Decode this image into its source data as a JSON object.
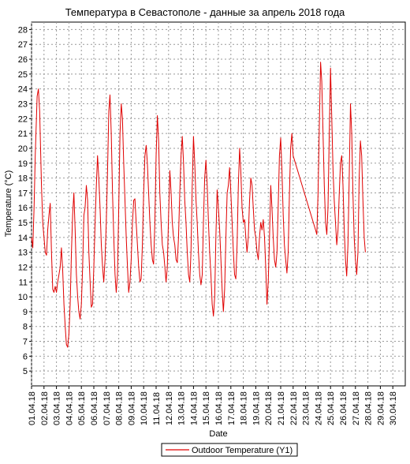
{
  "chart_data": {
    "type": "line",
    "title": "Температура в Севастополе - данные за апрель 2018 года",
    "xlabel": "Date",
    "ylabel": "Temperature (°C)",
    "ylim": [
      4,
      28.5
    ],
    "yticks": [
      5,
      6,
      7,
      8,
      9,
      10,
      11,
      12,
      13,
      14,
      15,
      16,
      17,
      18,
      19,
      20,
      21,
      22,
      23,
      24,
      25,
      26,
      27,
      28
    ],
    "xlim": [
      1.0,
      31.0
    ],
    "xticks": [
      {
        "x": 1,
        "label": "01.04.18"
      },
      {
        "x": 2,
        "label": "02.04.18"
      },
      {
        "x": 3,
        "label": "03.04.18"
      },
      {
        "x": 4,
        "label": "04.04.18"
      },
      {
        "x": 5,
        "label": "05.04.18"
      },
      {
        "x": 6,
        "label": "06.04.18"
      },
      {
        "x": 7,
        "label": "07.04.18"
      },
      {
        "x": 8,
        "label": "08.04.18"
      },
      {
        "x": 9,
        "label": "09.04.18"
      },
      {
        "x": 10,
        "label": "10.04.18"
      },
      {
        "x": 11,
        "label": "11.04.18"
      },
      {
        "x": 12,
        "label": "12.04.18"
      },
      {
        "x": 13,
        "label": "13.04.18"
      },
      {
        "x": 14,
        "label": "14.04.18"
      },
      {
        "x": 15,
        "label": "15.04.18"
      },
      {
        "x": 16,
        "label": "16.04.18"
      },
      {
        "x": 17,
        "label": "17.04.18"
      },
      {
        "x": 18,
        "label": "18.04.18"
      },
      {
        "x": 19,
        "label": "19.04.18"
      },
      {
        "x": 20,
        "label": "20.04.18"
      },
      {
        "x": 21,
        "label": "21.04.18"
      },
      {
        "x": 22,
        "label": "22.04.18"
      },
      {
        "x": 23,
        "label": "23.04.18"
      },
      {
        "x": 24,
        "label": "24.04.18"
      },
      {
        "x": 25,
        "label": "25.04.18"
      },
      {
        "x": 26,
        "label": "26.04.18"
      },
      {
        "x": 27,
        "label": "27.04.18"
      },
      {
        "x": 28,
        "label": "28.04.18"
      },
      {
        "x": 29,
        "label": "29.04.18"
      },
      {
        "x": 30,
        "label": "30.04.18"
      }
    ],
    "grid": true,
    "legend_position": "bottom-center",
    "series": [
      {
        "name": "Outdoor Temperature (Y1)",
        "color": "#e00000",
        "points": [
          [
            1.0,
            14.0
          ],
          [
            1.1,
            13.3
          ],
          [
            1.2,
            16.0
          ],
          [
            1.3,
            19.5
          ],
          [
            1.45,
            23.5
          ],
          [
            1.55,
            24.0
          ],
          [
            1.65,
            22.5
          ],
          [
            1.8,
            17.5
          ],
          [
            1.9,
            15.0
          ],
          [
            2.0,
            14.0
          ],
          [
            2.1,
            13.0
          ],
          [
            2.2,
            12.8
          ],
          [
            2.3,
            14.5
          ],
          [
            2.4,
            15.5
          ],
          [
            2.5,
            16.3
          ],
          [
            2.6,
            13.0
          ],
          [
            2.7,
            10.5
          ],
          [
            2.8,
            10.3
          ],
          [
            2.9,
            10.7
          ],
          [
            3.0,
            10.3
          ],
          [
            3.1,
            11.0
          ],
          [
            3.2,
            11.5
          ],
          [
            3.3,
            12.0
          ],
          [
            3.4,
            13.3
          ],
          [
            3.5,
            11.8
          ],
          [
            3.6,
            9.5
          ],
          [
            3.7,
            8.0
          ],
          [
            3.8,
            6.8
          ],
          [
            3.9,
            6.6
          ],
          [
            4.0,
            7.5
          ],
          [
            4.1,
            9.5
          ],
          [
            4.2,
            13.0
          ],
          [
            4.3,
            15.5
          ],
          [
            4.4,
            17.0
          ],
          [
            4.5,
            14.5
          ],
          [
            4.6,
            11.5
          ],
          [
            4.7,
            10.0
          ],
          [
            4.8,
            9.0
          ],
          [
            4.9,
            8.5
          ],
          [
            5.0,
            9.5
          ],
          [
            5.1,
            12.0
          ],
          [
            5.2,
            15.5
          ],
          [
            5.3,
            16.0
          ],
          [
            5.4,
            17.5
          ],
          [
            5.5,
            16.5
          ],
          [
            5.6,
            13.0
          ],
          [
            5.7,
            11.0
          ],
          [
            5.8,
            9.3
          ],
          [
            5.9,
            9.5
          ],
          [
            6.0,
            12.0
          ],
          [
            6.1,
            15.0
          ],
          [
            6.2,
            17.5
          ],
          [
            6.3,
            19.5
          ],
          [
            6.4,
            18.0
          ],
          [
            6.5,
            16.0
          ],
          [
            6.6,
            13.5
          ],
          [
            6.7,
            12.0
          ],
          [
            6.8,
            11.0
          ],
          [
            6.9,
            12.5
          ],
          [
            7.0,
            15.0
          ],
          [
            7.1,
            18.5
          ],
          [
            7.2,
            22.5
          ],
          [
            7.3,
            23.6
          ],
          [
            7.4,
            21.0
          ],
          [
            7.5,
            17.0
          ],
          [
            7.6,
            14.0
          ],
          [
            7.7,
            11.5
          ],
          [
            7.8,
            10.3
          ],
          [
            7.9,
            11.5
          ],
          [
            8.0,
            16.0
          ],
          [
            8.1,
            21.0
          ],
          [
            8.2,
            23.0
          ],
          [
            8.3,
            22.0
          ],
          [
            8.4,
            19.0
          ],
          [
            8.5,
            16.5
          ],
          [
            8.6,
            14.0
          ],
          [
            8.7,
            12.0
          ],
          [
            8.8,
            10.3
          ],
          [
            8.9,
            11.0
          ],
          [
            9.0,
            12.5
          ],
          [
            9.1,
            15.0
          ],
          [
            9.2,
            16.5
          ],
          [
            9.3,
            16.6
          ],
          [
            9.4,
            15.0
          ],
          [
            9.5,
            13.5
          ],
          [
            9.6,
            12.0
          ],
          [
            9.7,
            11.0
          ],
          [
            9.8,
            11.2
          ],
          [
            9.9,
            13.5
          ],
          [
            10.0,
            17.0
          ],
          [
            10.1,
            19.5
          ],
          [
            10.2,
            20.2
          ],
          [
            10.3,
            19.0
          ],
          [
            10.4,
            17.0
          ],
          [
            10.5,
            15.0
          ],
          [
            10.6,
            13.5
          ],
          [
            10.7,
            12.5
          ],
          [
            10.8,
            12.2
          ],
          [
            10.9,
            15.0
          ],
          [
            11.0,
            19.5
          ],
          [
            11.1,
            22.2
          ],
          [
            11.2,
            20.5
          ],
          [
            11.3,
            17.0
          ],
          [
            11.4,
            15.0
          ],
          [
            11.5,
            13.5
          ],
          [
            11.6,
            13.0
          ],
          [
            11.7,
            12.0
          ],
          [
            11.8,
            11.0
          ],
          [
            11.9,
            12.0
          ],
          [
            12.0,
            15.5
          ],
          [
            12.1,
            18.5
          ],
          [
            12.2,
            17.0
          ],
          [
            12.3,
            15.0
          ],
          [
            12.4,
            14.0
          ],
          [
            12.5,
            13.5
          ],
          [
            12.6,
            12.5
          ],
          [
            12.7,
            12.3
          ],
          [
            12.8,
            14.0
          ],
          [
            12.9,
            17.0
          ],
          [
            13.0,
            19.5
          ],
          [
            13.1,
            20.8
          ],
          [
            13.2,
            19.0
          ],
          [
            13.3,
            16.5
          ],
          [
            13.4,
            15.0
          ],
          [
            13.5,
            13.0
          ],
          [
            13.6,
            11.5
          ],
          [
            13.7,
            11.0
          ],
          [
            13.8,
            13.0
          ],
          [
            13.9,
            17.5
          ],
          [
            14.0,
            20.8
          ],
          [
            14.1,
            19.0
          ],
          [
            14.2,
            16.5
          ],
          [
            14.3,
            15.0
          ],
          [
            14.4,
            13.0
          ],
          [
            14.5,
            11.5
          ],
          [
            14.6,
            10.8
          ],
          [
            14.7,
            11.5
          ],
          [
            14.8,
            15.0
          ],
          [
            14.9,
            18.0
          ],
          [
            15.0,
            19.2
          ],
          [
            15.1,
            17.5
          ],
          [
            15.2,
            15.0
          ],
          [
            15.3,
            13.0
          ],
          [
            15.4,
            11.5
          ],
          [
            15.5,
            9.5
          ],
          [
            15.6,
            8.7
          ],
          [
            15.7,
            10.0
          ],
          [
            15.8,
            14.0
          ],
          [
            15.9,
            17.2
          ],
          [
            16.0,
            16.0
          ],
          [
            16.1,
            14.5
          ],
          [
            16.2,
            12.5
          ],
          [
            16.3,
            10.5
          ],
          [
            16.4,
            9.0
          ],
          [
            16.5,
            10.5
          ],
          [
            16.6,
            14.0
          ],
          [
            16.7,
            17.0
          ],
          [
            16.8,
            17.5
          ],
          [
            16.9,
            18.7
          ],
          [
            17.0,
            17.0
          ],
          [
            17.1,
            15.0
          ],
          [
            17.2,
            13.0
          ],
          [
            17.3,
            11.5
          ],
          [
            17.4,
            11.2
          ],
          [
            17.5,
            13.5
          ],
          [
            17.6,
            17.5
          ],
          [
            17.7,
            20.0
          ],
          [
            17.8,
            18.5
          ],
          [
            17.9,
            16.0
          ],
          [
            18.0,
            15.0
          ],
          [
            18.1,
            15.2
          ],
          [
            18.2,
            14.0
          ],
          [
            18.3,
            13.0
          ],
          [
            18.4,
            14.0
          ],
          [
            18.5,
            16.5
          ],
          [
            18.6,
            18.0
          ],
          [
            18.7,
            17.5
          ],
          [
            18.8,
            16.0
          ],
          [
            18.9,
            14.5
          ],
          [
            19.0,
            14.0
          ],
          [
            19.1,
            13.0
          ],
          [
            19.2,
            12.5
          ],
          [
            19.3,
            14.0
          ],
          [
            19.4,
            15.0
          ],
          [
            19.5,
            14.5
          ],
          [
            19.6,
            15.2
          ],
          [
            19.7,
            14.0
          ],
          [
            19.8,
            12.0
          ],
          [
            19.9,
            9.5
          ],
          [
            20.0,
            11.0
          ],
          [
            20.1,
            14.0
          ],
          [
            20.2,
            17.5
          ],
          [
            20.3,
            16.0
          ],
          [
            20.4,
            14.0
          ],
          [
            20.5,
            12.5
          ],
          [
            20.6,
            12.0
          ],
          [
            20.7,
            13.0
          ],
          [
            20.8,
            16.0
          ],
          [
            20.9,
            19.5
          ],
          [
            21.0,
            20.7
          ],
          [
            21.1,
            18.5
          ],
          [
            21.2,
            15.5
          ],
          [
            21.3,
            13.5
          ],
          [
            21.4,
            12.5
          ],
          [
            21.5,
            11.6
          ],
          [
            21.6,
            13.0
          ],
          [
            21.7,
            17.0
          ],
          [
            21.8,
            20.0
          ],
          [
            21.9,
            21.0
          ],
          [
            22.0,
            19.5
          ],
          [
            23.8,
            14.5
          ],
          [
            23.9,
            14.2
          ],
          [
            24.0,
            17.0
          ],
          [
            24.1,
            21.5
          ],
          [
            24.2,
            25.8
          ],
          [
            24.3,
            24.5
          ],
          [
            24.4,
            21.0
          ],
          [
            24.5,
            17.5
          ],
          [
            24.6,
            15.0
          ],
          [
            24.7,
            14.2
          ],
          [
            24.8,
            16.0
          ],
          [
            24.9,
            21.0
          ],
          [
            25.0,
            25.4
          ],
          [
            25.1,
            22.0
          ],
          [
            25.2,
            18.5
          ],
          [
            25.3,
            16.5
          ],
          [
            25.4,
            15.0
          ],
          [
            25.5,
            13.5
          ],
          [
            25.6,
            14.5
          ],
          [
            25.7,
            17.0
          ],
          [
            25.8,
            19.0
          ],
          [
            25.9,
            19.5
          ],
          [
            26.0,
            17.5
          ],
          [
            26.1,
            14.5
          ],
          [
            26.2,
            12.5
          ],
          [
            26.3,
            11.4
          ],
          [
            26.4,
            13.5
          ],
          [
            26.5,
            18.0
          ],
          [
            26.6,
            23.0
          ],
          [
            26.7,
            21.0
          ],
          [
            26.8,
            17.0
          ],
          [
            26.9,
            14.0
          ],
          [
            27.0,
            12.5
          ],
          [
            27.1,
            11.5
          ],
          [
            27.2,
            13.0
          ],
          [
            27.3,
            18.0
          ],
          [
            27.4,
            20.5
          ],
          [
            27.5,
            19.5
          ],
          [
            27.6,
            16.5
          ],
          [
            27.7,
            14.0
          ],
          [
            27.8,
            13.0
          ]
        ]
      }
    ]
  }
}
